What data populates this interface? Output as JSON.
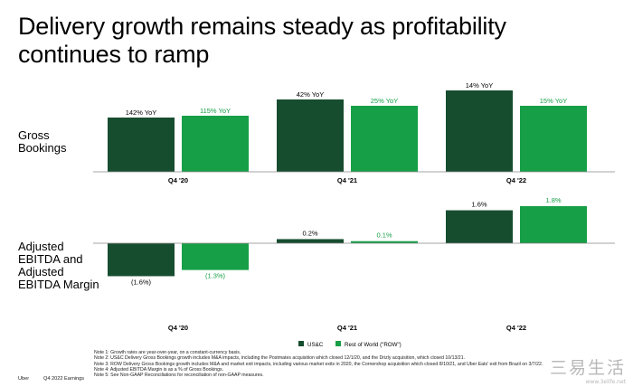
{
  "title": "Delivery growth remains steady as profitability continues to ramp",
  "colors": {
    "usc": "#174D2F",
    "row": "#169F46",
    "usc_text": "#174D2F",
    "row_text": "#169F46"
  },
  "chart_data": [
    {
      "type": "bar",
      "title": "Gross Bookings",
      "ylabel": "Gross Bookings",
      "categories": [
        "Q4 '20",
        "Q4 '21",
        "Q4 '22"
      ],
      "series": [
        {
          "name": "US&C",
          "values": [
            60,
            80,
            90
          ],
          "data_labels": [
            "142% YoY",
            "42% YoY",
            "14% YoY"
          ]
        },
        {
          "name": "Rest of World (\"ROW\")",
          "values": [
            62,
            73,
            73
          ],
          "data_labels": [
            "115% YoY",
            "25% YoY",
            "15% YoY"
          ]
        }
      ],
      "ylim": [
        0,
        90
      ]
    },
    {
      "type": "bar",
      "title": "Adjusted EBITDA and Adjusted EBITDA Margin",
      "ylabel": "Adjusted EBITDA and Adjusted EBITDA Margin",
      "categories": [
        "Q4 '20",
        "Q4 '21",
        "Q4 '22"
      ],
      "series": [
        {
          "name": "US&C",
          "values": [
            -1.6,
            0.2,
            1.6
          ],
          "data_labels": [
            "(1.6%)",
            "0.2%",
            "1.6%"
          ]
        },
        {
          "name": "Rest of World (\"ROW\")",
          "values": [
            -1.3,
            0.1,
            1.8
          ],
          "data_labels": [
            "(1.3%)",
            "0.1%",
            "1.8%"
          ]
        }
      ],
      "ylim": [
        -1.6,
        1.8
      ]
    }
  ],
  "legend": {
    "usc": "US&C",
    "row": "Rest of World (\"ROW\")"
  },
  "notes": [
    "Note 1: Growth rates are year-over-year, on a constant-currency basis.",
    "Note 2: US&C Delivery Gross Bookings growth includes M&A impacts, including the Postmates acquisition which closed 12/1/20, and the Drizly acquisition, which closed 10/13/21.",
    "Note 3: ROW Delivery Gross Bookings growth includes M&A and market exit impacts, including various market exits in 2020, the Cornershop acquisition which closed 8/10/21, and Uber Eats' exit from Brazil on 3/7/22.",
    "Note 4: Adjusted EBITDA Margin is as a % of Gross Bookings.",
    "Note 5: See Non-GAAP Reconciliations for reconciliation of non-GAAP measures."
  ],
  "footer": {
    "brand": "Uber",
    "doc": "Q4 2022 Earnings"
  },
  "watermark": {
    "main": "三易生活",
    "sub": "www.3elife.net"
  }
}
